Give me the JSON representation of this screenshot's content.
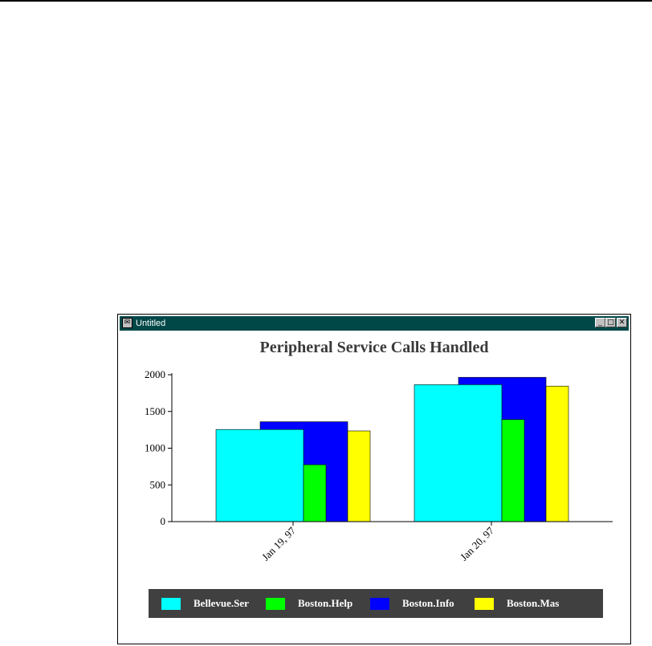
{
  "window": {
    "title": "Untitled"
  },
  "chart_data": {
    "type": "bar",
    "title": "Peripheral Service Calls Handled",
    "categories": [
      "Jan 19, 97",
      "Jan 20, 97"
    ],
    "series": [
      {
        "name": "Bellevue.Ser",
        "values": [
          1255,
          1865
        ],
        "color": "#00ffff"
      },
      {
        "name": "Boston.Help",
        "values": [
          775,
          1390
        ],
        "color": "#00ff00"
      },
      {
        "name": "Boston.Info",
        "values": [
          1360,
          1965
        ],
        "color": "#0000ff"
      },
      {
        "name": "Boston.Mas",
        "values": [
          1235,
          1845
        ],
        "color": "#ffff00"
      }
    ],
    "yticks": [
      0,
      500,
      1000,
      1500,
      2000
    ],
    "ylim": [
      0,
      2000
    ],
    "legend_position": "bottom",
    "grid": false
  }
}
